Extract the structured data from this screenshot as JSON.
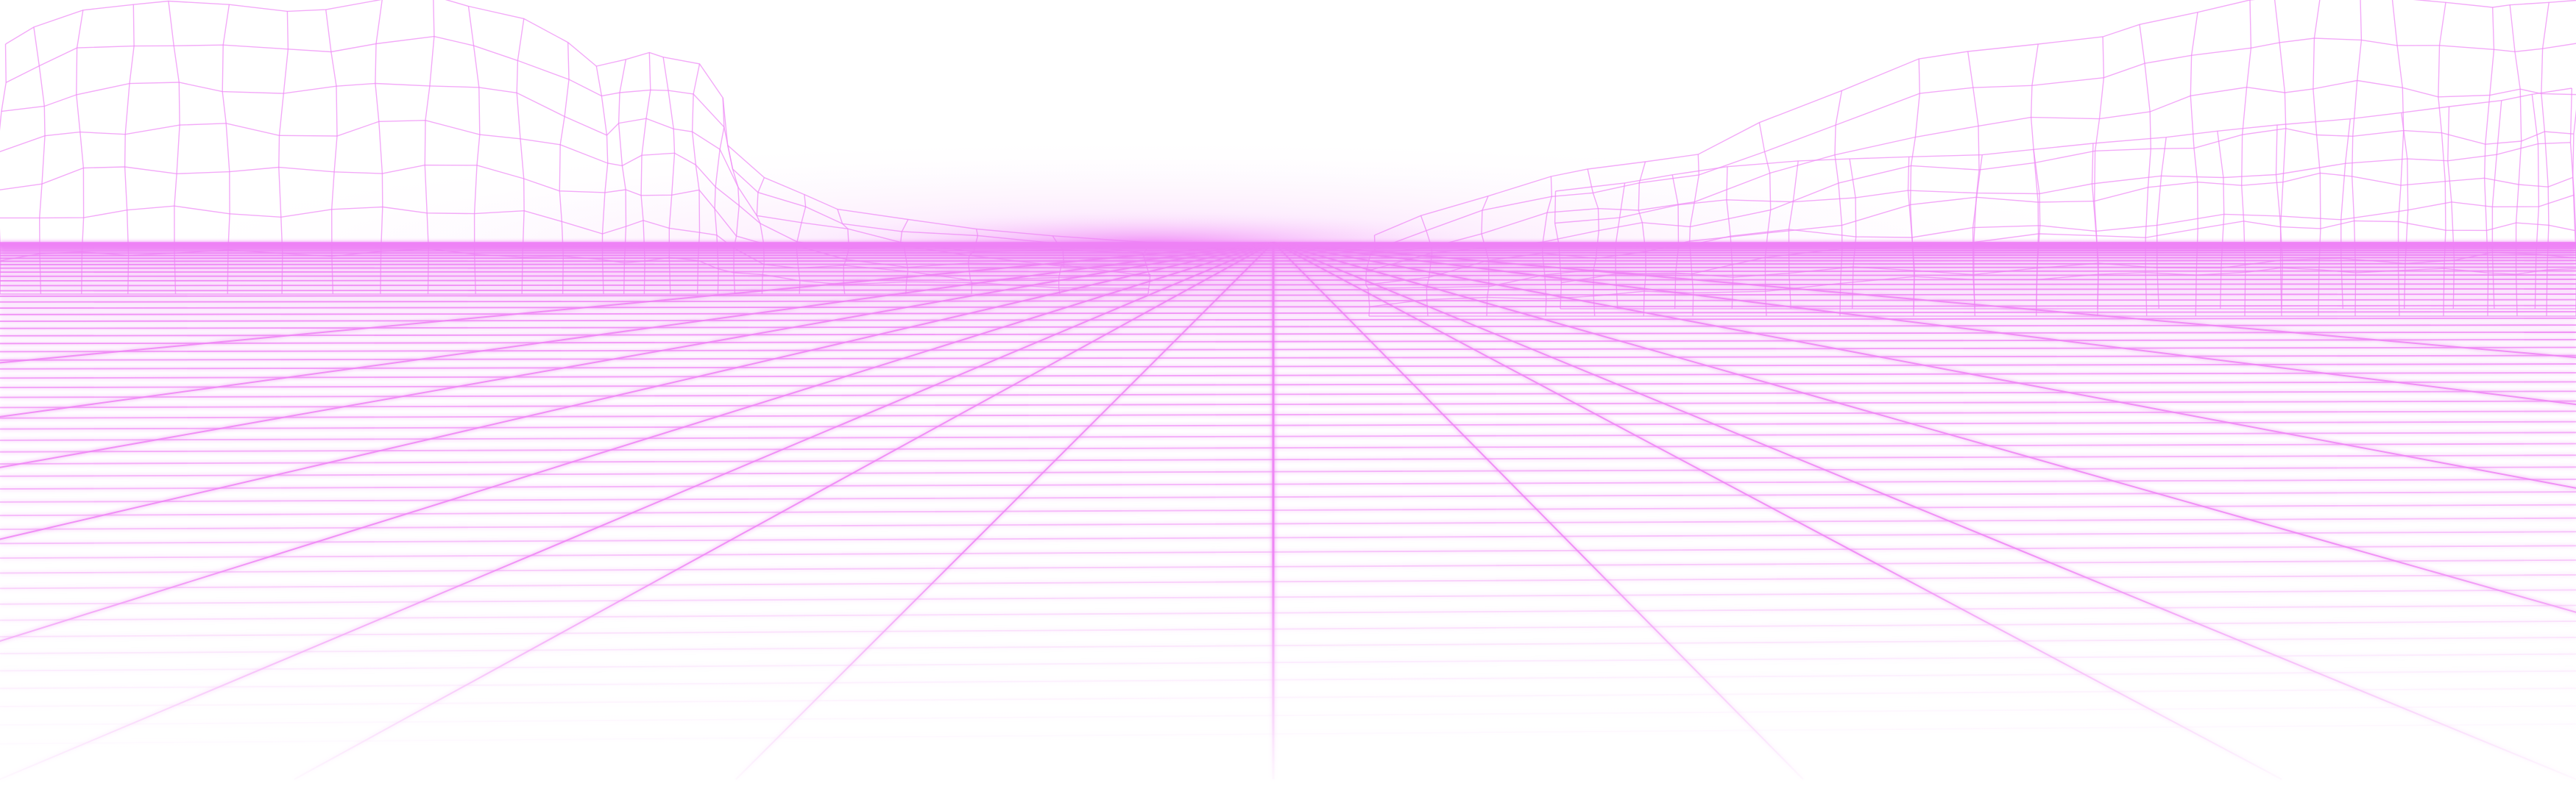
{
  "scene": {
    "description_free": true,
    "palette": {
      "background": "#ffffff",
      "line": "#ee82f5",
      "line_strong": "#e466ef",
      "glow": "#f39df8",
      "haze": "#fbe3fd"
    },
    "elements": {
      "grid": "perspective-wireframe-floor",
      "left_mountains": "wireframe-mountain-range",
      "right_mountains": "wireframe-mountain-range",
      "horizon_glow": "horizon-glow"
    }
  }
}
